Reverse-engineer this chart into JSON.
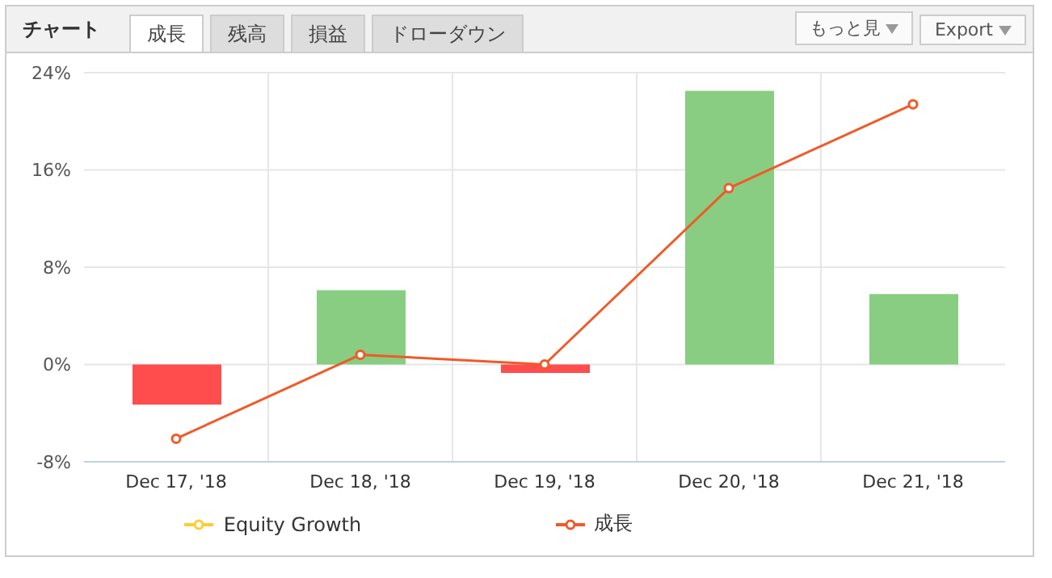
{
  "chart_data": {
    "type": "bar",
    "categories": [
      "Dec 17, '18",
      "Dec 18, '18",
      "Dec 19, '18",
      "Dec 20, '18",
      "Dec 21, '18"
    ],
    "series": [
      {
        "colors": [
          "#ff4c4c",
          "#88cd82",
          "#ff4c4c",
          "#88cd82",
          "#88cd82"
        ],
        "values": [
          -3.3,
          6.1,
          -0.7,
          22.5,
          5.8
        ]
      },
      {
        "type": "line",
        "name": "Equity Growth",
        "color": "#ffcc33",
        "values": [
          null,
          null,
          null,
          null,
          null
        ]
      },
      {
        "type": "line",
        "name": "成長",
        "color": "#f05a28",
        "values": [
          -6.1,
          0.8,
          0.0,
          14.5,
          21.4
        ]
      }
    ],
    "ylim": [
      -8,
      24
    ],
    "yticks": [
      {
        "value": -8,
        "label": "-8%"
      },
      {
        "value": 0,
        "label": "0%"
      },
      {
        "value": 8,
        "label": "8%"
      },
      {
        "value": 16,
        "label": "16%"
      },
      {
        "value": 24,
        "label": "24%"
      }
    ],
    "grid": true,
    "legend": "bottom",
    "marker": "circle",
    "line_style": "solid",
    "annotations": [
      "チャート",
      "成長",
      "残高",
      "損益",
      "ドローダウン",
      "もっと見",
      "Export"
    ]
  }
}
